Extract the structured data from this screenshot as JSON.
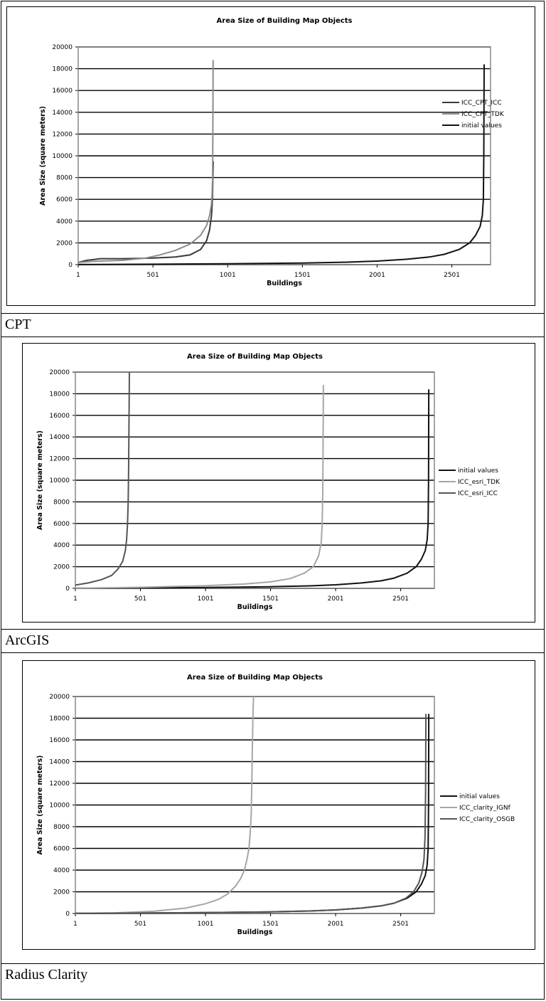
{
  "captions": [
    "CPT",
    "ArcGIS",
    "Radius Clarity"
  ],
  "chart_data": [
    {
      "type": "line",
      "title": "Area Size of Building Map Objects",
      "xlabel": "Buildings",
      "ylabel": "Area Size (square meters)",
      "xlim": [
        1,
        2760
      ],
      "ylim": [
        0,
        20000
      ],
      "x_ticks": [
        "1",
        "501",
        "1001",
        "1501",
        "2001",
        "2501"
      ],
      "y_ticks": [
        "0",
        "2000",
        "4000",
        "6000",
        "8000",
        "10000",
        "12000",
        "14000",
        "16000",
        "18000",
        "20000"
      ],
      "grid": true,
      "legend_position": "right",
      "series": [
        {
          "name": "ICC_CPT_ICC",
          "color": "#3a3a3a",
          "x": [
            1,
            60,
            150,
            300,
            500,
            650,
            750,
            820,
            860,
            880,
            893,
            897,
            900,
            902,
            905
          ],
          "y": [
            200,
            400,
            550,
            550,
            600,
            700,
            900,
            1400,
            2200,
            3200,
            4500,
            5500,
            6500,
            8000,
            9500
          ]
        },
        {
          "name": "ICC_CPT_TDK",
          "color": "#8c8c8c",
          "x": [
            1,
            100,
            300,
            450,
            550,
            650,
            750,
            820,
            860,
            880,
            892,
            897,
            900,
            902,
            904
          ],
          "y": [
            200,
            300,
            400,
            600,
            900,
            1300,
            1900,
            2700,
            3600,
            4500,
            5500,
            6500,
            8000,
            12000,
            18800
          ]
        },
        {
          "name": "initial values",
          "color": "#111111",
          "x": [
            1,
            500,
            1000,
            1500,
            1800,
            2000,
            2200,
            2350,
            2450,
            2550,
            2620,
            2660,
            2690,
            2705,
            2712,
            2715,
            2717
          ],
          "y": [
            10,
            40,
            80,
            150,
            230,
            330,
            500,
            700,
            950,
            1400,
            2000,
            2700,
            3500,
            4500,
            6000,
            10000,
            18400
          ]
        }
      ]
    },
    {
      "type": "line",
      "title": "Area Size of Building Map Objects",
      "xlabel": "Buildings",
      "ylabel": "Area Size (square meters)",
      "xlim": [
        1,
        2760
      ],
      "ylim": [
        0,
        20000
      ],
      "x_ticks": [
        "1",
        "501",
        "1001",
        "1501",
        "2001",
        "2501"
      ],
      "y_ticks": [
        "0",
        "2000",
        "4000",
        "6000",
        "8000",
        "10000",
        "12000",
        "14000",
        "16000",
        "18000",
        "20000"
      ],
      "grid": true,
      "legend_position": "right",
      "series": [
        {
          "name": "initial values",
          "color": "#111111",
          "x": [
            1,
            500,
            1000,
            1500,
            1800,
            2000,
            2200,
            2350,
            2450,
            2550,
            2620,
            2660,
            2690,
            2705,
            2712,
            2715,
            2717
          ],
          "y": [
            10,
            40,
            80,
            150,
            230,
            330,
            500,
            700,
            950,
            1400,
            2000,
            2700,
            3500,
            4500,
            6000,
            10000,
            18400
          ]
        },
        {
          "name": "ICC_esri_TDK",
          "color": "#a6a6a6",
          "x": [
            1,
            500,
            1000,
            1300,
            1500,
            1650,
            1760,
            1830,
            1870,
            1890,
            1898,
            1902,
            1905,
            1907
          ],
          "y": [
            10,
            100,
            250,
            400,
            600,
            900,
            1400,
            2000,
            3000,
            4200,
            6000,
            9000,
            14000,
            18800
          ]
        },
        {
          "name": "ICC_esri_ICC",
          "color": "#555555",
          "x": [
            1,
            100,
            200,
            280,
            330,
            365,
            385,
            395,
            402,
            407,
            410,
            413,
            416
          ],
          "y": [
            300,
            500,
            800,
            1200,
            1800,
            2500,
            3500,
            4500,
            6000,
            8000,
            11000,
            15000,
            20000
          ]
        }
      ]
    },
    {
      "type": "line",
      "title": "Area Size of Building Map Objects",
      "xlabel": "Buildings",
      "ylabel": "Area Size (square meters)",
      "xlim": [
        1,
        2760
      ],
      "ylim": [
        0,
        20000
      ],
      "x_ticks": [
        "1",
        "501",
        "1001",
        "1501",
        "2001",
        "2501"
      ],
      "y_ticks": [
        "0",
        "2000",
        "4000",
        "6000",
        "8000",
        "10000",
        "12000",
        "14000",
        "16000",
        "18000",
        "20000"
      ],
      "grid": true,
      "legend_position": "right",
      "series": [
        {
          "name": "initial values",
          "color": "#111111",
          "x": [
            1,
            500,
            1000,
            1500,
            1800,
            2000,
            2200,
            2350,
            2450,
            2550,
            2620,
            2660,
            2690,
            2705,
            2712,
            2715,
            2717
          ],
          "y": [
            10,
            40,
            80,
            150,
            230,
            330,
            500,
            700,
            950,
            1400,
            2000,
            2700,
            3500,
            4500,
            6000,
            10000,
            18400
          ]
        },
        {
          "name": "ICC_clarity_IGNf",
          "color": "#a6a6a6",
          "x": [
            1,
            300,
            600,
            850,
            1000,
            1100,
            1170,
            1230,
            1270,
            1300,
            1320,
            1335,
            1345,
            1352,
            1357,
            1361,
            1365,
            1370
          ],
          "y": [
            10,
            60,
            200,
            500,
            900,
            1300,
            1800,
            2500,
            3200,
            4000,
            5000,
            6000,
            7500,
            9000,
            12000,
            15000,
            18000,
            20000
          ]
        },
        {
          "name": "ICC_clarity_OSGB",
          "color": "#555555",
          "x": [
            1,
            500,
            1000,
            1500,
            1800,
            2000,
            2200,
            2350,
            2450,
            2540,
            2600,
            2640,
            2665,
            2680,
            2688,
            2692,
            2695
          ],
          "y": [
            10,
            40,
            80,
            150,
            230,
            330,
            500,
            700,
            950,
            1400,
            2000,
            2800,
            3800,
            5000,
            7000,
            11000,
            18400
          ]
        }
      ]
    }
  ]
}
